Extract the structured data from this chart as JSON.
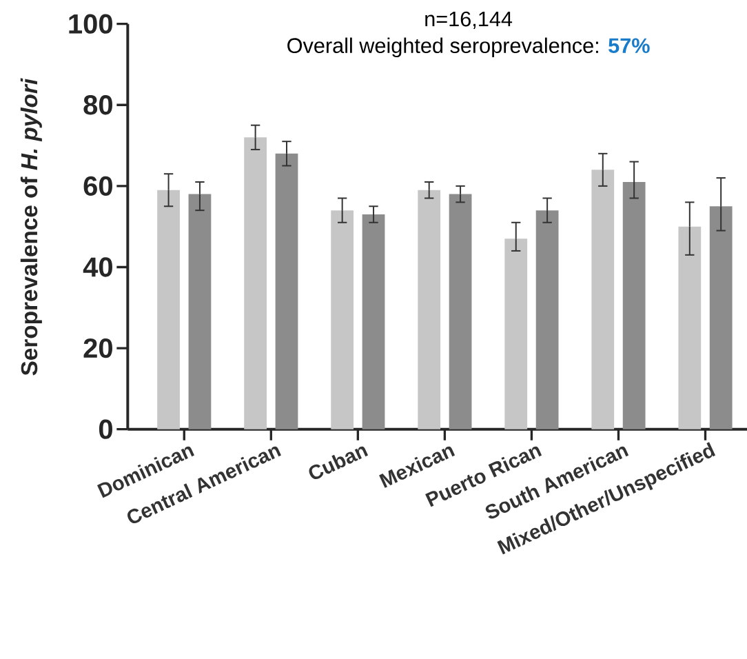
{
  "chart_data": {
    "type": "bar",
    "title": "n=16,144",
    "subtitle": "Overall weighted seroprevalence: **57%**",
    "ylabel": "Seroprevalence of *H. pylori*",
    "categories": [
      "Dominican",
      "Central American",
      "Cuban",
      "Mexican",
      "Puerto Rican",
      "South American",
      "Mixed/Other/Unspecified"
    ],
    "series": [
      {
        "color": "#c6c6c6",
        "values": [
          59,
          72,
          54,
          59,
          47,
          64,
          50
        ],
        "errors": [
          [
            55,
            63
          ],
          [
            69,
            75
          ],
          [
            51,
            57
          ],
          [
            57,
            61
          ],
          [
            44,
            51
          ],
          [
            60,
            68
          ],
          [
            43,
            56
          ]
        ]
      },
      {
        "color": "#8c8c8c",
        "values": [
          58,
          68,
          53,
          58,
          54,
          61,
          55
        ],
        "errors": [
          [
            54,
            61
          ],
          [
            65,
            71
          ],
          [
            51,
            55
          ],
          [
            56,
            60
          ],
          [
            51,
            57
          ],
          [
            57,
            66
          ],
          [
            49,
            62
          ]
        ]
      }
    ],
    "ylim": [
      0,
      100
    ],
    "yticks": [
      0,
      20,
      40,
      60,
      80,
      100
    ]
  }
}
